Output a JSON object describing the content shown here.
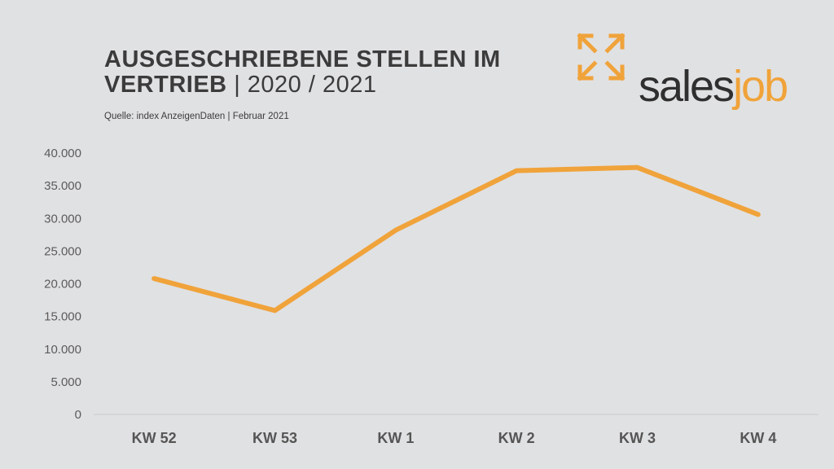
{
  "header": {
    "title_line1": "AUSGESCHRIEBENE STELLEN IM",
    "title_line2_bold": "VERTRIEB",
    "title_line2_light": " | 2020 / 2021",
    "source": "Quelle: index AnzeigenDaten  |  Februar 2021"
  },
  "logo": {
    "icon": "expand-arrows-icon",
    "text_sales": "sales",
    "text_job": "job",
    "accent_color": "#f0a33a",
    "text_color": "#2f2f2f"
  },
  "chart_data": {
    "type": "line",
    "title": "AUSGESCHRIEBENE STELLEN IM VERTRIEB | 2020 / 2021",
    "categories": [
      "KW 52",
      "KW 53",
      "KW 1",
      "KW 2",
      "KW 3",
      "KW 4"
    ],
    "series": [
      {
        "values": [
          20800,
          15900,
          28200,
          37300,
          37800,
          30600
        ],
        "color": "#f0a33a"
      }
    ],
    "yticks": [
      "0",
      "5.000",
      "10.000",
      "15.000",
      "20.000",
      "25.000",
      "30.000",
      "35.000",
      "40.000"
    ],
    "ylim": [
      0,
      40000
    ],
    "grid": false,
    "legend": "none"
  }
}
